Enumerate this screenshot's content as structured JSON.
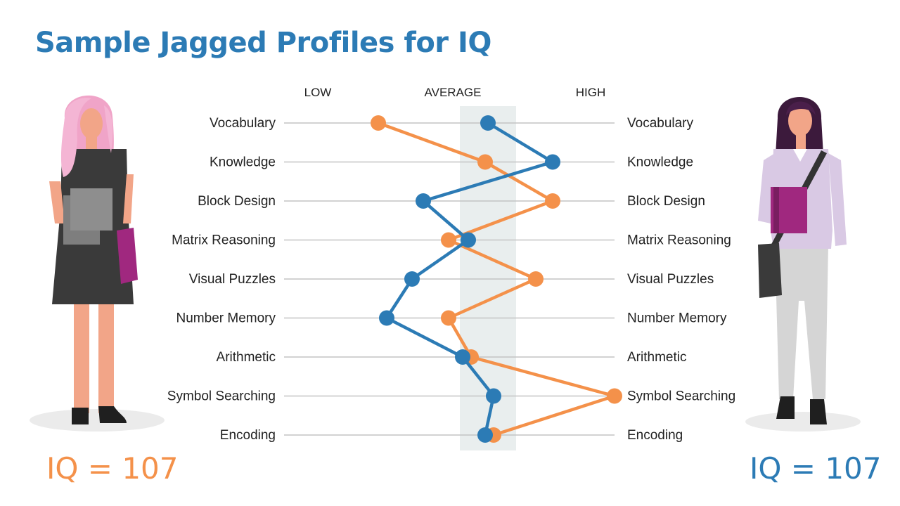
{
  "title": "Sample Jagged Profiles for IQ",
  "left_score": "IQ = 107",
  "right_score": "IQ = 107",
  "colors": {
    "orange": "#f4914a",
    "blue": "#2c7bb5",
    "band": "#e9eeee",
    "line": "#c3c3c3"
  },
  "chart_data": {
    "type": "line",
    "orientation": "horizontal-profile",
    "level_labels": [
      "LOW",
      "AVERAGE",
      "HIGH"
    ],
    "categories": [
      "Vocabulary",
      "Knowledge",
      "Block Design",
      "Matrix Reasoning",
      "Visual Puzzles",
      "Number Memory",
      "Arithmetic",
      "Symbol Searching",
      "Encoding"
    ],
    "xlim": [
      0,
      100
    ],
    "average_band": [
      45,
      65
    ],
    "series": [
      {
        "color": "#f4914a",
        "values": [
          16,
          54,
          78,
          41,
          72,
          41,
          49,
          100,
          57
        ]
      },
      {
        "color": "#2c7bb5",
        "values": [
          55,
          78,
          32,
          48,
          28,
          19,
          46,
          57,
          54
        ]
      }
    ]
  }
}
